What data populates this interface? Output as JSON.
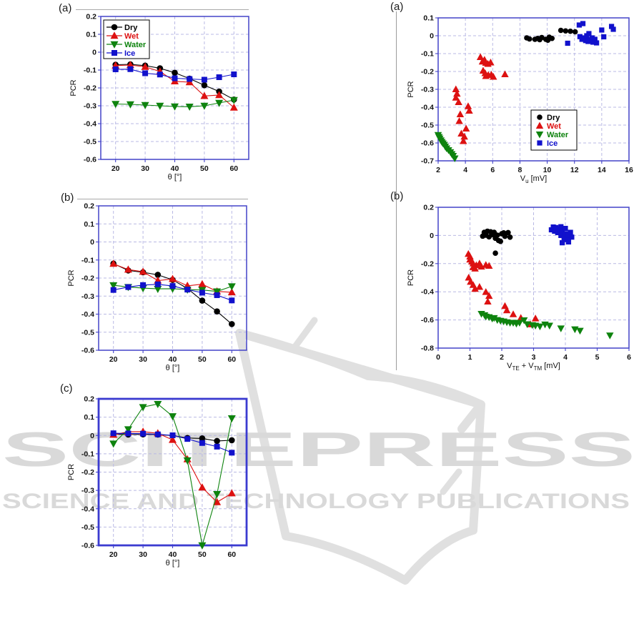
{
  "watermark": {
    "wordmark": "SCITEPRESS",
    "subtitle": "SCIENCE AND TECHNOLOGY PUBLICATIONS",
    "color": "#d9d9d9"
  },
  "series_colors": {
    "Dry": "#000000",
    "Wet": "#dd1111",
    "Water": "#0e830e",
    "Ice": "#1111cc"
  },
  "chart_data": [
    {
      "panel_label": "(a)",
      "type": "line",
      "ylabel": "PCR",
      "xlabel_segments": [
        {
          "t": "θ [°]"
        }
      ],
      "xlim": [
        15,
        65
      ],
      "ylim": [
        -0.6,
        0.2
      ],
      "xticks": [
        20,
        30,
        40,
        50,
        60
      ],
      "yticks": [
        0.2,
        0.1,
        0,
        -0.1,
        -0.2,
        -0.3,
        -0.4,
        -0.5,
        -0.6
      ],
      "x": [
        20,
        25,
        30,
        35,
        40,
        45,
        50,
        55,
        60
      ],
      "legend": true,
      "legend_position": "top-left",
      "series": [
        {
          "name": "Dry",
          "marker": "circle",
          "color": "#000000",
          "values": [
            -0.07,
            -0.068,
            -0.075,
            -0.09,
            -0.115,
            -0.148,
            -0.185,
            -0.22,
            -0.265
          ]
        },
        {
          "name": "Wet",
          "marker": "triangle-up",
          "color": "#dd1111",
          "values": [
            -0.075,
            -0.072,
            -0.082,
            -0.108,
            -0.163,
            -0.168,
            -0.245,
            -0.24,
            -0.31
          ]
        },
        {
          "name": "Water",
          "marker": "triangle-down",
          "color": "#0e830e",
          "values": [
            -0.29,
            -0.292,
            -0.296,
            -0.3,
            -0.304,
            -0.305,
            -0.3,
            -0.284,
            -0.268
          ]
        },
        {
          "name": "Ice",
          "marker": "square",
          "color": "#1111cc",
          "values": [
            -0.096,
            -0.095,
            -0.118,
            -0.125,
            -0.146,
            -0.15,
            -0.154,
            -0.14,
            -0.124
          ]
        }
      ]
    },
    {
      "panel_label": "(b)",
      "type": "line",
      "ylabel": "PCR",
      "xlabel_segments": [
        {
          "t": "θ [°]"
        }
      ],
      "xlim": [
        15,
        65
      ],
      "ylim": [
        -0.6,
        0.2
      ],
      "xticks": [
        20,
        30,
        40,
        50,
        60
      ],
      "yticks": [
        0.2,
        0.1,
        0,
        -0.1,
        -0.2,
        -0.3,
        -0.4,
        -0.5,
        -0.6
      ],
      "x": [
        20,
        25,
        30,
        35,
        40,
        45,
        50,
        55,
        60
      ],
      "legend": false,
      "series": [
        {
          "name": "Dry",
          "marker": "circle",
          "color": "#000000",
          "values": [
            -0.12,
            -0.158,
            -0.168,
            -0.182,
            -0.21,
            -0.258,
            -0.325,
            -0.385,
            -0.455
          ]
        },
        {
          "name": "Wet",
          "marker": "triangle-up",
          "color": "#dd1111",
          "values": [
            -0.121,
            -0.153,
            -0.165,
            -0.214,
            -0.205,
            -0.243,
            -0.234,
            -0.274,
            -0.279
          ]
        },
        {
          "name": "Water",
          "marker": "triangle-down",
          "color": "#0e830e",
          "values": [
            -0.24,
            -0.25,
            -0.256,
            -0.26,
            -0.259,
            -0.264,
            -0.266,
            -0.274,
            -0.246
          ]
        },
        {
          "name": "Ice",
          "marker": "square",
          "color": "#1111cc",
          "values": [
            -0.266,
            -0.25,
            -0.239,
            -0.235,
            -0.244,
            -0.264,
            -0.281,
            -0.295,
            -0.324
          ]
        }
      ]
    },
    {
      "panel_label": "(c)",
      "type": "line",
      "ylabel": "PCR",
      "xlabel_segments": [
        {
          "t": "θ [°]"
        }
      ],
      "xlim": [
        15,
        65
      ],
      "ylim": [
        -0.6,
        0.2
      ],
      "xticks": [
        20,
        30,
        40,
        50,
        60
      ],
      "yticks": [
        0.2,
        0.1,
        0,
        -0.1,
        -0.2,
        -0.3,
        -0.4,
        -0.5,
        -0.6
      ],
      "x": [
        20,
        25,
        30,
        35,
        40,
        45,
        50,
        55,
        60
      ],
      "legend": false,
      "series": [
        {
          "name": "Dry",
          "marker": "circle",
          "color": "#000000",
          "values": [
            0.008,
            0.005,
            0.006,
            0.005,
            0.0,
            -0.014,
            -0.016,
            -0.03,
            -0.026
          ]
        },
        {
          "name": "Wet",
          "marker": "triangle-up",
          "color": "#dd1111",
          "values": [
            0.004,
            0.02,
            0.021,
            0.012,
            -0.024,
            -0.13,
            -0.284,
            -0.364,
            -0.316
          ]
        },
        {
          "name": "Water",
          "marker": "triangle-down",
          "color": "#0e830e",
          "values": [
            -0.044,
            0.034,
            0.155,
            0.172,
            0.105,
            -0.136,
            -0.6,
            -0.32,
            0.094
          ]
        },
        {
          "name": "Ice",
          "marker": "square",
          "color": "#1111cc",
          "values": [
            0.012,
            0.011,
            0.01,
            0.006,
            0.001,
            -0.019,
            -0.041,
            -0.061,
            -0.094
          ]
        }
      ]
    },
    {
      "panel_label": "(a)",
      "type": "scatter",
      "ylabel": "PCR",
      "xlabel_segments": [
        {
          "t": "V"
        },
        {
          "t": "u",
          "sub": true
        },
        {
          "t": " [mV]"
        }
      ],
      "xlim": [
        2,
        16
      ],
      "ylim": [
        -0.7,
        0.1
      ],
      "xticks": [
        2,
        4,
        6,
        8,
        10,
        12,
        14,
        16
      ],
      "yticks": [
        0.1,
        0,
        -0.1,
        -0.2,
        -0.3,
        -0.4,
        -0.5,
        -0.6,
        -0.7
      ],
      "legend": true,
      "legend_position": "bottom-right",
      "series": [
        {
          "name": "Dry",
          "marker": "circle",
          "color": "#000000",
          "points": [
            [
              8.5,
              -0.012
            ],
            [
              8.7,
              -0.018
            ],
            [
              9.1,
              -0.02
            ],
            [
              9.3,
              -0.015
            ],
            [
              9.45,
              -0.022
            ],
            [
              9.6,
              -0.01
            ],
            [
              9.9,
              -0.02
            ],
            [
              10.05,
              -0.025
            ],
            [
              10.15,
              -0.008
            ],
            [
              10.35,
              -0.015
            ],
            [
              11.0,
              0.03
            ],
            [
              11.35,
              0.027
            ],
            [
              11.7,
              0.025
            ],
            [
              12.05,
              0.022
            ]
          ]
        },
        {
          "name": "Wet",
          "marker": "triangle-up",
          "color": "#dd1111",
          "points": [
            [
              5.1,
              -0.12
            ],
            [
              5.25,
              -0.145
            ],
            [
              5.4,
              -0.135
            ],
            [
              5.5,
              -0.152
            ],
            [
              5.65,
              -0.158
            ],
            [
              5.85,
              -0.15
            ],
            [
              5.3,
              -0.196
            ],
            [
              5.45,
              -0.21
            ],
            [
              5.5,
              -0.226
            ],
            [
              5.68,
              -0.22
            ],
            [
              5.9,
              -0.218
            ],
            [
              6.05,
              -0.23
            ],
            [
              6.9,
              -0.216
            ],
            [
              3.3,
              -0.3
            ],
            [
              3.38,
              -0.325
            ],
            [
              3.3,
              -0.347
            ],
            [
              3.5,
              -0.372
            ],
            [
              4.2,
              -0.395
            ],
            [
              4.28,
              -0.42
            ],
            [
              3.62,
              -0.44
            ],
            [
              3.55,
              -0.478
            ],
            [
              4.05,
              -0.52
            ],
            [
              3.7,
              -0.548
            ],
            [
              3.92,
              -0.565
            ],
            [
              3.85,
              -0.59
            ]
          ]
        },
        {
          "name": "Water",
          "marker": "triangle-down",
          "color": "#0e830e",
          "points": [
            [
              2.0,
              -0.555
            ],
            [
              2.06,
              -0.566
            ],
            [
              2.12,
              -0.575
            ],
            [
              2.2,
              -0.585
            ],
            [
              2.27,
              -0.594
            ],
            [
              2.35,
              -0.602
            ],
            [
              2.45,
              -0.61
            ],
            [
              2.52,
              -0.62
            ],
            [
              2.62,
              -0.63
            ],
            [
              2.76,
              -0.64
            ],
            [
              2.9,
              -0.651
            ],
            [
              3.0,
              -0.662
            ],
            [
              3.1,
              -0.672
            ],
            [
              3.22,
              -0.686
            ]
          ]
        },
        {
          "name": "Ice",
          "marker": "square",
          "color": "#1111cc",
          "points": [
            [
              11.5,
              -0.042
            ],
            [
              12.35,
              0.06
            ],
            [
              12.62,
              0.068
            ],
            [
              12.4,
              -0.005
            ],
            [
              12.55,
              -0.02
            ],
            [
              12.7,
              -0.012
            ],
            [
              12.82,
              -0.027
            ],
            [
              12.9,
              0.0
            ],
            [
              13.0,
              -0.032
            ],
            [
              13.06,
              0.012
            ],
            [
              13.15,
              -0.022
            ],
            [
              13.3,
              -0.012
            ],
            [
              13.36,
              -0.036
            ],
            [
              13.5,
              -0.02
            ],
            [
              13.62,
              -0.04
            ],
            [
              14.0,
              0.032
            ],
            [
              14.15,
              -0.006
            ],
            [
              14.72,
              0.052
            ],
            [
              14.85,
              0.036
            ]
          ]
        }
      ]
    },
    {
      "panel_label": "(b)",
      "type": "scatter",
      "ylabel": "PCR",
      "xlabel_segments": [
        {
          "t": "V"
        },
        {
          "t": "TE",
          "sub": true
        },
        {
          "t": " + V"
        },
        {
          "t": "TM",
          "sub": true
        },
        {
          "t": " [mV]"
        }
      ],
      "xlim": [
        0,
        6
      ],
      "ylim": [
        -0.8,
        0.2
      ],
      "xticks": [
        0,
        1,
        2,
        3,
        4,
        5,
        6
      ],
      "yticks": [
        0.2,
        0,
        -0.2,
        -0.4,
        -0.6,
        -0.8
      ],
      "legend": false,
      "series": [
        {
          "name": "Dry",
          "marker": "circle",
          "color": "#000000",
          "points": [
            [
              1.4,
              -0.005
            ],
            [
              1.45,
              0.022
            ],
            [
              1.5,
              0.002
            ],
            [
              1.55,
              0.03
            ],
            [
              1.6,
              -0.01
            ],
            [
              1.65,
              0.026
            ],
            [
              1.7,
              0.006
            ],
            [
              1.76,
              0.022
            ],
            [
              1.8,
              -0.02
            ],
            [
              1.86,
              0.002
            ],
            [
              1.9,
              -0.036
            ],
            [
              1.96,
              -0.042
            ],
            [
              2.0,
              0.012
            ],
            [
              2.06,
              0.018
            ],
            [
              2.1,
              -0.006
            ],
            [
              2.2,
              0.02
            ],
            [
              2.26,
              -0.012
            ],
            [
              1.8,
              -0.126
            ]
          ]
        },
        {
          "name": "Wet",
          "marker": "triangle-up",
          "color": "#dd1111",
          "points": [
            [
              0.95,
              -0.132
            ],
            [
              1.0,
              -0.15
            ],
            [
              1.0,
              -0.172
            ],
            [
              1.06,
              -0.186
            ],
            [
              1.1,
              -0.2
            ],
            [
              1.1,
              -0.226
            ],
            [
              1.16,
              -0.236
            ],
            [
              1.2,
              -0.212
            ],
            [
              1.3,
              -0.2
            ],
            [
              1.36,
              -0.222
            ],
            [
              1.5,
              -0.21
            ],
            [
              1.6,
              -0.216
            ],
            [
              0.96,
              -0.3
            ],
            [
              1.02,
              -0.33
            ],
            [
              1.1,
              -0.352
            ],
            [
              1.16,
              -0.38
            ],
            [
              1.3,
              -0.366
            ],
            [
              1.5,
              -0.402
            ],
            [
              1.6,
              -0.43
            ],
            [
              1.56,
              -0.47
            ],
            [
              2.1,
              -0.502
            ],
            [
              2.16,
              -0.532
            ],
            [
              2.36,
              -0.56
            ],
            [
              2.6,
              -0.586
            ],
            [
              3.06,
              -0.59
            ],
            [
              2.9,
              -0.632
            ]
          ]
        },
        {
          "name": "Water",
          "marker": "triangle-down",
          "color": "#0e830e",
          "points": [
            [
              1.36,
              -0.556
            ],
            [
              1.46,
              -0.566
            ],
            [
              1.5,
              -0.576
            ],
            [
              1.6,
              -0.58
            ],
            [
              1.7,
              -0.59
            ],
            [
              1.76,
              -0.586
            ],
            [
              1.86,
              -0.6
            ],
            [
              1.96,
              -0.606
            ],
            [
              2.06,
              -0.61
            ],
            [
              2.16,
              -0.616
            ],
            [
              2.26,
              -0.62
            ],
            [
              2.36,
              -0.62
            ],
            [
              2.46,
              -0.626
            ],
            [
              2.56,
              -0.62
            ],
            [
              2.7,
              -0.602
            ],
            [
              2.8,
              -0.63
            ],
            [
              2.96,
              -0.636
            ],
            [
              3.06,
              -0.64
            ],
            [
              3.2,
              -0.646
            ],
            [
              3.36,
              -0.632
            ],
            [
              3.5,
              -0.64
            ],
            [
              3.86,
              -0.66
            ],
            [
              4.3,
              -0.666
            ],
            [
              4.46,
              -0.676
            ],
            [
              5.4,
              -0.71
            ]
          ]
        },
        {
          "name": "Ice",
          "marker": "square",
          "color": "#1111cc",
          "points": [
            [
              3.56,
              0.04
            ],
            [
              3.62,
              0.06
            ],
            [
              3.66,
              0.03
            ],
            [
              3.7,
              0.056
            ],
            [
              3.76,
              0.02
            ],
            [
              3.8,
              0.046
            ],
            [
              3.86,
              0.062
            ],
            [
              3.86,
              0.0
            ],
            [
              3.9,
              0.03
            ],
            [
              3.96,
              -0.02
            ],
            [
              4.0,
              0.05
            ],
            [
              4.0,
              0.012
            ],
            [
              4.06,
              -0.03
            ],
            [
              4.1,
              0.002
            ],
            [
              4.16,
              0.022
            ],
            [
              4.2,
              -0.012
            ],
            [
              3.9,
              -0.052
            ],
            [
              4.1,
              -0.046
            ]
          ]
        }
      ]
    }
  ]
}
